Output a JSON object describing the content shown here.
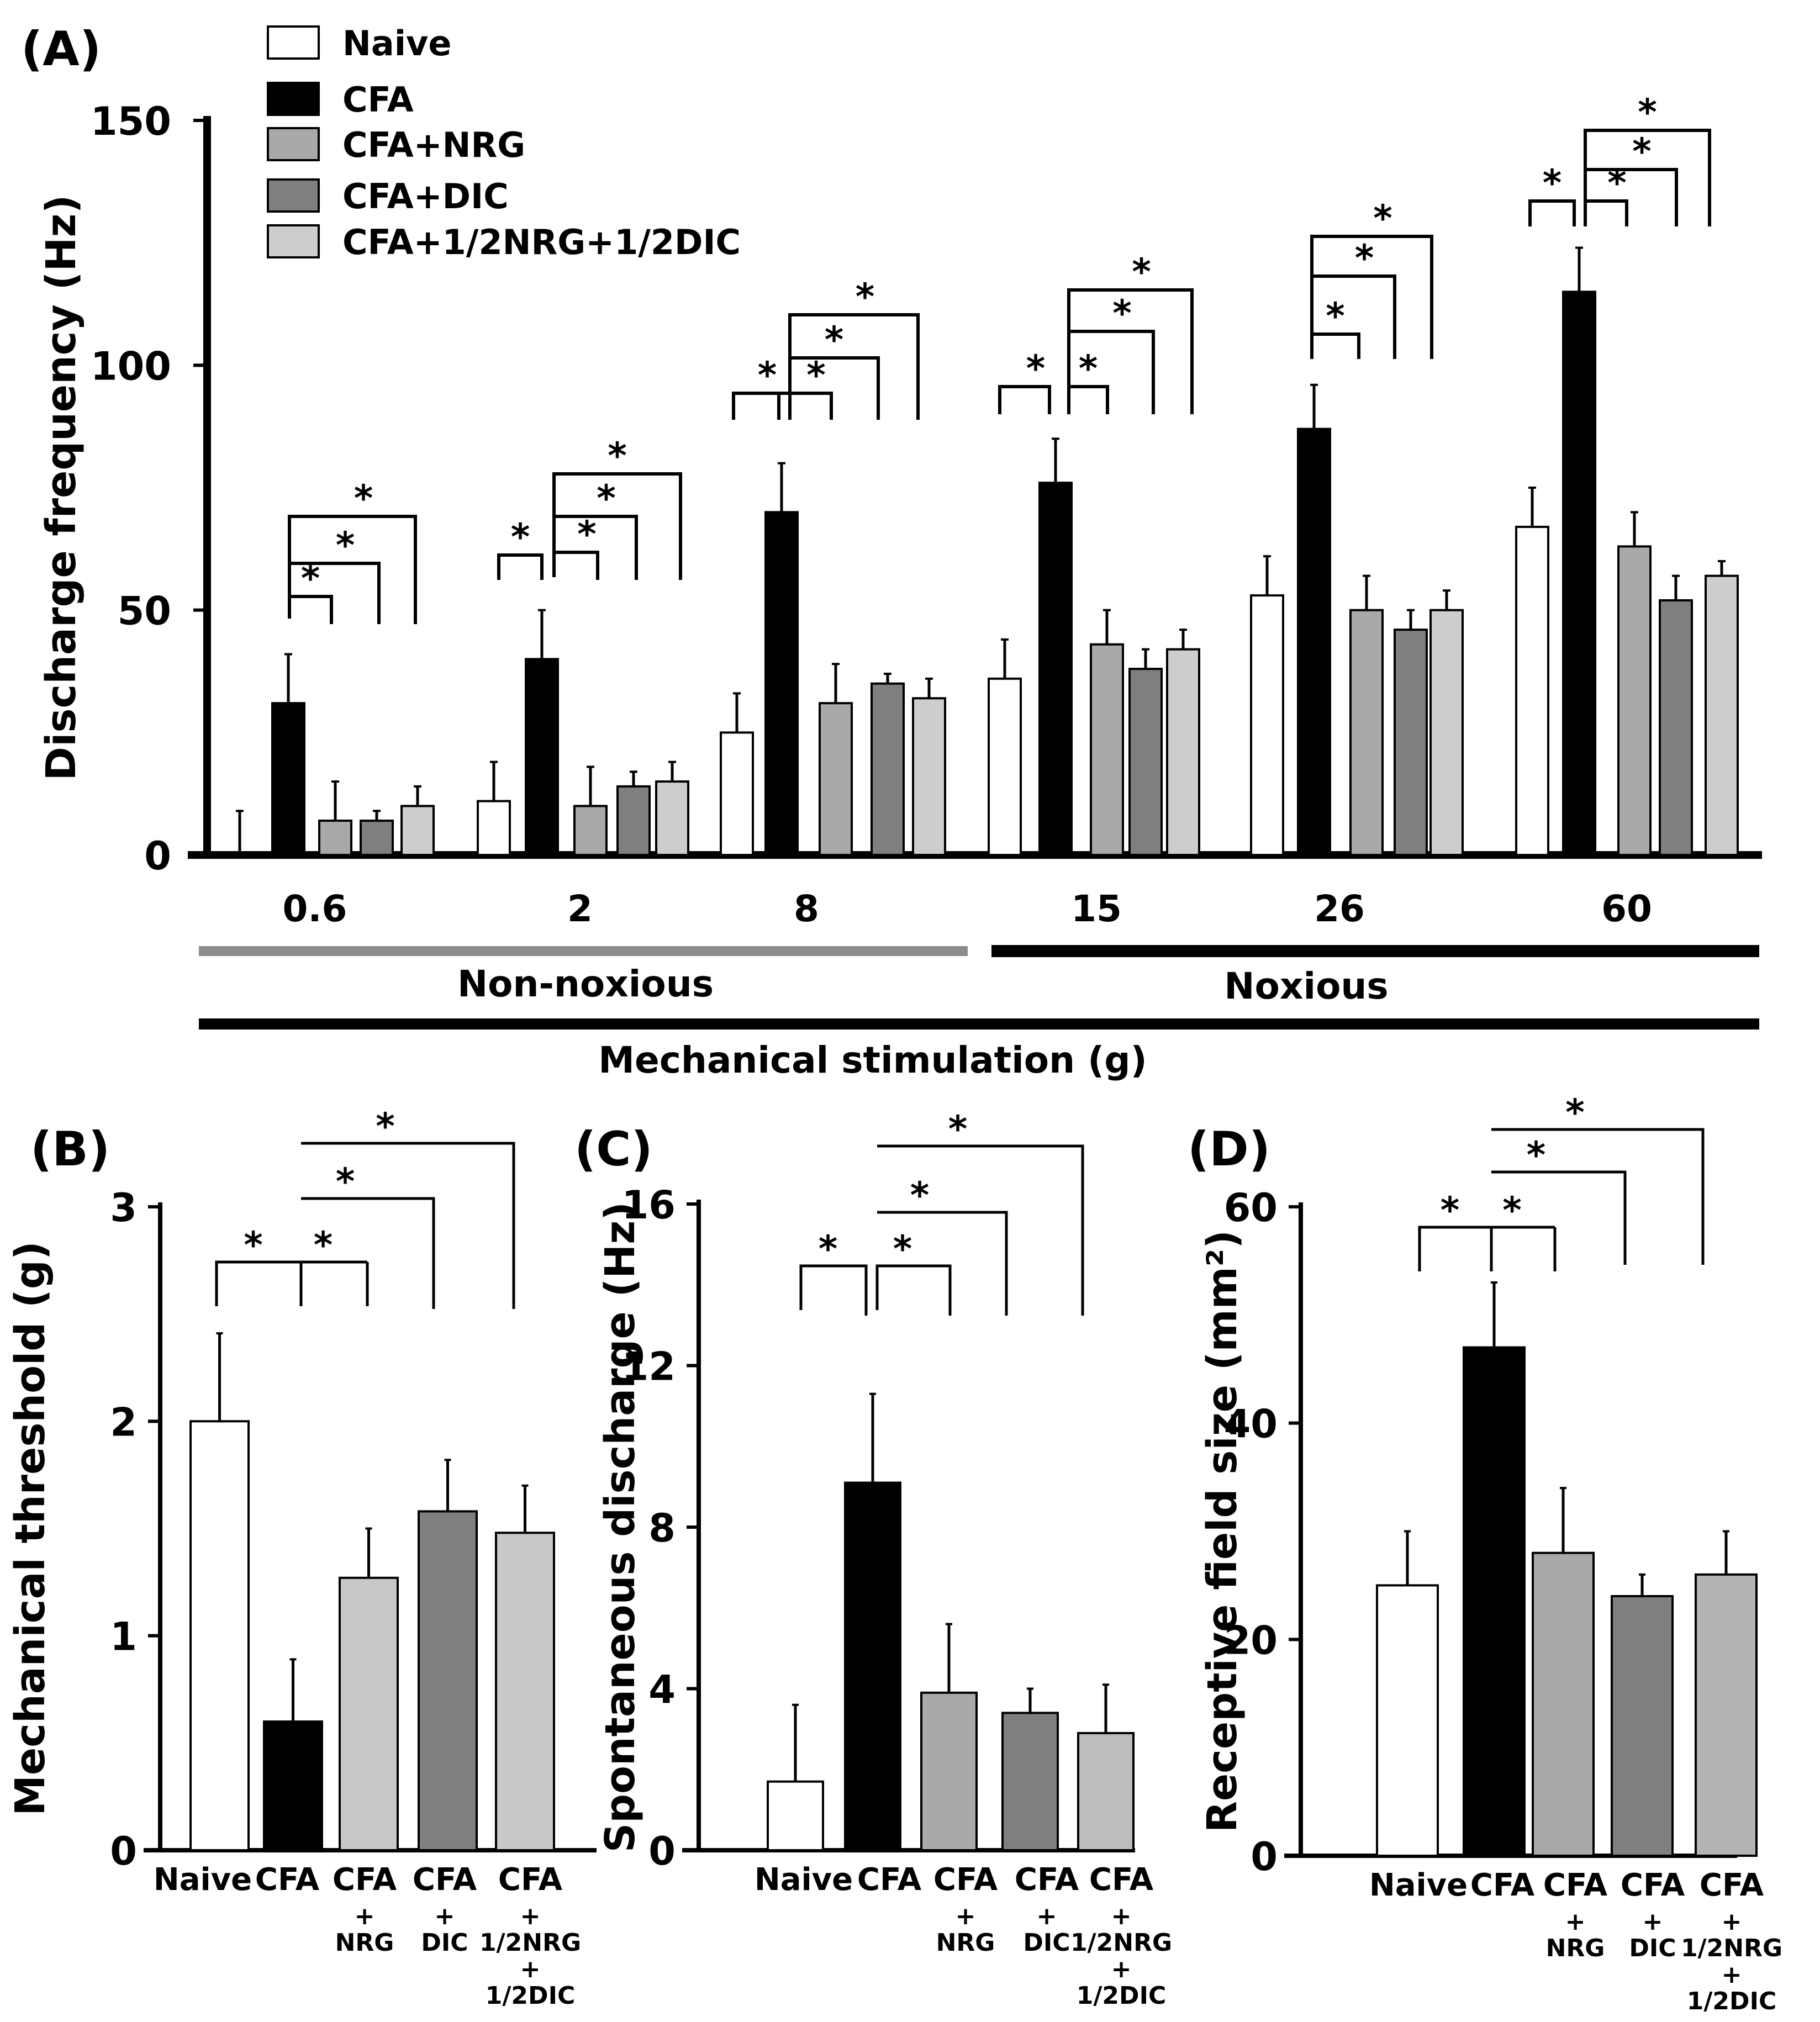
{
  "colors": {
    "Naive": "#ffffff",
    "CFA": "#000000",
    "CFA+NRG": "#a9a9a9",
    "CFA+DIC": "#7f7f7f",
    "CFA+1/2NRG+1/2DIC": "#cdcdcd",
    "panelB_CFA+NRG": "#c8c8c8",
    "panelB_CFA+1/2NRG+1/2DIC": "#c8c8c8",
    "panelC_CFA+1/2NRG+1/2DIC": "#bdbdbd",
    "panelD_CFA+1/2NRG+1/2DIC": "#b4b4b4",
    "stroke": "#000000",
    "nonnoxious_bar": "#8c8c8c"
  },
  "legend": [
    {
      "key": "Naive",
      "label": "Naive"
    },
    {
      "key": "CFA",
      "label": "CFA"
    },
    {
      "key": "CFA+NRG",
      "label": "CFA+NRG"
    },
    {
      "key": "CFA+DIC",
      "label": "CFA+DIC"
    },
    {
      "key": "CFA+1/2NRG+1/2DIC",
      "label": "CFA+1/2NRG+1/2DIC"
    }
  ],
  "chart_data": [
    {
      "panel": "(A)",
      "type": "bar",
      "ylabel": "Discharge frequency (Hz)",
      "xlabel": "Mechanical stimulation (g)",
      "ylim": [
        0,
        150
      ],
      "yticks": [
        "0",
        "50",
        "100",
        "150"
      ],
      "categories": [
        "0.6",
        "2",
        "8",
        "15",
        "26",
        "60"
      ],
      "ranges": [
        {
          "label": "Non-noxious",
          "from": 0,
          "to": 2
        },
        {
          "label": "Noxious",
          "from": 3,
          "to": 5
        }
      ],
      "series": [
        {
          "name": "Naive",
          "values": [
            0,
            11,
            25,
            36,
            53,
            67
          ],
          "errors": [
            9,
            8,
            8,
            8,
            8,
            8
          ]
        },
        {
          "name": "CFA",
          "values": [
            31,
            40,
            70,
            76,
            87,
            115
          ],
          "errors": [
            10,
            10,
            10,
            9,
            9,
            9
          ]
        },
        {
          "name": "CFA+NRG",
          "values": [
            7,
            10,
            31,
            43,
            50,
            63
          ],
          "errors": [
            8,
            8,
            8,
            7,
            7,
            7
          ]
        },
        {
          "name": "CFA+DIC",
          "values": [
            7,
            14,
            35,
            38,
            46,
            52
          ],
          "errors": [
            2,
            3,
            2,
            4,
            4,
            5
          ]
        },
        {
          "name": "CFA+1/2NRG+1/2DIC",
          "values": [
            10,
            15,
            32,
            42,
            50,
            57
          ],
          "errors": [
            4,
            4,
            4,
            4,
            4,
            3
          ]
        }
      ],
      "significance_mark": "*",
      "significance_comparisons": "Naive vs CFA (2, 8, 15, 60); CFA vs each treatment (all categories)"
    },
    {
      "panel": "(B)",
      "type": "bar",
      "ylabel": "Mechanical threshold (g)",
      "ylim": [
        0,
        3
      ],
      "yticks": [
        "0",
        "1",
        "2",
        "3"
      ],
      "categories": [
        "Naive",
        "CFA",
        "CFA\n+\nNRG",
        "CFA\n+\nDIC",
        "CFA\n+\n1/2NRG\n+\n1/2DIC"
      ],
      "values": [
        2.0,
        0.6,
        1.27,
        1.58,
        1.48
      ],
      "errors": [
        0.41,
        0.29,
        0.23,
        0.24,
        0.22
      ],
      "significance_mark": "*"
    },
    {
      "panel": "(C)",
      "type": "bar",
      "ylabel": "Spontaneous discharge (Hz)",
      "ylim": [
        0,
        16
      ],
      "yticks": [
        "0",
        "4",
        "8",
        "12",
        "16"
      ],
      "categories": [
        "Naive",
        "CFA",
        "CFA\n+\nNRG",
        "CFA\n+\nDIC",
        "CFA\n+\n1/2NRG\n+\n1/2DIC"
      ],
      "values": [
        1.7,
        9.1,
        3.9,
        3.4,
        2.9
      ],
      "errors": [
        1.9,
        2.2,
        1.7,
        0.6,
        1.2
      ],
      "significance_mark": "*"
    },
    {
      "panel": "(D)",
      "type": "bar",
      "ylabel": "Receptive field size (mm²)",
      "ylim": [
        0,
        60
      ],
      "yticks": [
        "0",
        "20",
        "40",
        "60"
      ],
      "categories": [
        "Naive",
        "CFA",
        "CFA\n+\nNRG",
        "CFA\n+\nDIC",
        "CFA\n+\n1/2NRG\n+\n1/2DIC"
      ],
      "values": [
        25,
        47,
        28,
        24,
        26
      ],
      "errors": [
        5,
        6,
        6,
        2,
        4
      ],
      "significance_mark": "*"
    }
  ]
}
